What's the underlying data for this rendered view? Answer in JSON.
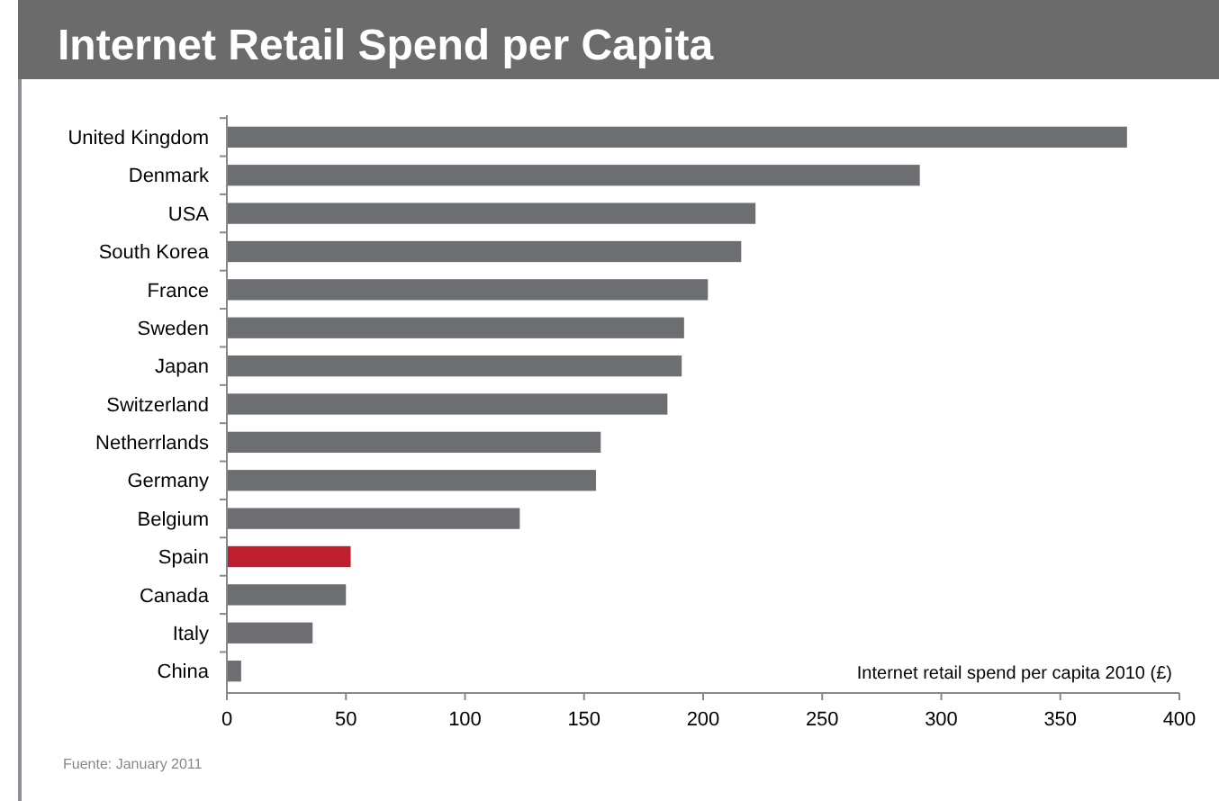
{
  "chart_data": {
    "type": "bar",
    "orientation": "horizontal",
    "title": "Internet Retail Spend per Capita",
    "xlabel": "Internet retail spend per capita 2010 (£)",
    "categories": [
      "United Kingdom",
      "Denmark",
      "USA",
      "South Korea",
      "France",
      "Sweden",
      "Japan",
      "Switzerland",
      "Netherrlands",
      "Germany",
      "Belgium",
      "Spain",
      "Canada",
      "Italy",
      "China"
    ],
    "values": [
      378,
      291,
      222,
      216,
      202,
      192,
      191,
      185,
      157,
      155,
      123,
      52,
      50,
      36,
      6
    ],
    "colors": [
      "#6d6e71",
      "#6d6e71",
      "#6d6e71",
      "#6d6e71",
      "#6d6e71",
      "#6d6e71",
      "#6d6e71",
      "#6d6e71",
      "#6d6e71",
      "#6d6e71",
      "#6d6e71",
      "#be1e2d",
      "#6d6e71",
      "#6d6e71",
      "#6d6e71"
    ],
    "xlim": [
      0,
      400
    ],
    "xticks": [
      0,
      50,
      100,
      150,
      200,
      250,
      300,
      350,
      400
    ],
    "annotations": [
      "Fuente: January 2011"
    ]
  }
}
